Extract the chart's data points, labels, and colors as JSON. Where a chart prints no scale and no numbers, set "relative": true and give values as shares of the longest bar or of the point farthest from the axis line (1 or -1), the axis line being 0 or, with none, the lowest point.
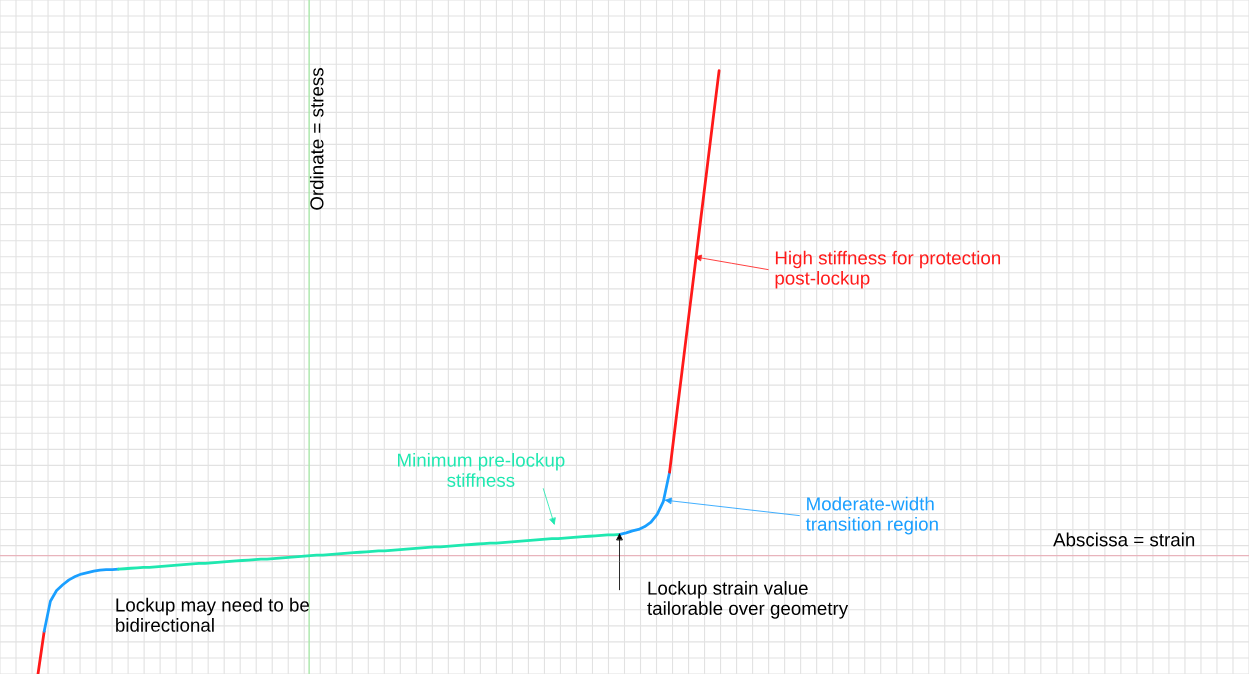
{
  "chart_data": {
    "type": "line",
    "relative": true,
    "grid": true,
    "legend": false,
    "line_style": "solid",
    "ylabel": "Ordinate = stress",
    "ref_lines": [
      {
        "axis": "y",
        "value": 0,
        "label": "Abscissa = strain",
        "color": "#e8b4bc"
      }
    ],
    "categories": [
      null,
      null,
      null,
      null,
      null,
      null,
      null,
      null,
      null,
      null,
      null,
      null,
      null,
      null,
      null,
      null,
      null,
      null,
      null,
      null,
      null,
      null,
      null,
      null,
      null,
      null,
      null,
      null,
      null,
      null,
      null,
      null,
      null,
      null,
      null,
      null,
      null,
      null,
      null,
      null,
      null,
      null,
      null,
      null,
      null,
      null,
      null,
      null,
      null,
      null,
      null,
      null,
      null,
      null,
      null,
      null,
      null,
      null,
      null,
      null,
      null,
      null,
      null,
      null,
      null,
      null,
      null,
      null,
      null,
      null,
      null,
      null,
      null,
      null,
      null,
      null,
      null,
      null,
      null,
      null,
      null,
      null,
      null,
      null,
      null,
      null,
      null,
      null,
      null,
      null,
      null,
      null,
      null,
      null,
      null,
      null,
      null,
      null,
      null,
      null,
      null,
      null,
      null,
      null,
      null,
      null,
      null,
      null,
      null,
      null,
      null
    ],
    "series": [
      {
        "color": "#ff1a1a",
        "values": [
          -0.244,
          -0.156,
          null,
          null,
          null,
          null,
          null,
          null,
          null,
          null,
          null,
          null,
          null,
          null,
          null,
          null,
          null,
          null,
          null,
          null,
          null,
          null,
          null,
          null,
          null,
          null,
          null,
          null,
          null,
          null,
          null,
          null,
          null,
          null,
          null,
          null,
          null,
          null,
          null,
          null,
          null,
          null,
          null,
          null,
          null,
          null,
          null,
          null,
          null,
          null,
          null,
          null,
          null,
          null,
          null,
          null,
          null,
          null,
          null,
          null,
          null,
          null,
          null,
          null,
          null,
          null,
          null,
          null,
          null,
          null,
          null,
          null,
          null,
          null,
          null,
          null,
          null,
          null,
          null,
          null,
          null,
          null,
          null,
          null,
          null,
          null,
          null,
          null,
          null,
          null,
          null,
          null,
          null,
          null,
          null,
          null,
          null,
          null,
          null,
          null,
          null,
          null,
          null,
          null,
          null,
          null,
          null,
          null,
          null,
          null,
          null
        ]
      },
      {
        "color": "#1a9fff",
        "values": [
          null,
          -0.156,
          -0.094,
          -0.072,
          -0.06,
          -0.05,
          -0.043,
          -0.038,
          -0.035,
          -0.032,
          -0.03,
          -0.029,
          -0.029,
          -0.028,
          null,
          null,
          null,
          null,
          null,
          null,
          null,
          null,
          null,
          null,
          null,
          null,
          null,
          null,
          null,
          null,
          null,
          null,
          null,
          null,
          null,
          null,
          null,
          null,
          null,
          null,
          null,
          null,
          null,
          null,
          null,
          null,
          null,
          null,
          null,
          null,
          null,
          null,
          null,
          null,
          null,
          null,
          null,
          null,
          null,
          null,
          null,
          null,
          null,
          null,
          null,
          null,
          null,
          null,
          null,
          null,
          null,
          null,
          null,
          null,
          null,
          null,
          null,
          null,
          null,
          null,
          null,
          null,
          null,
          null,
          null,
          null,
          null,
          null,
          null,
          null,
          null,
          null,
          null,
          null,
          null,
          null,
          null,
          null,
          null,
          null,
          null,
          null,
          null,
          null,
          null,
          null,
          null,
          null,
          null,
          null,
          null
        ]
      },
      {
        "color": "#1fe8b0",
        "values": [
          null,
          null,
          null,
          null,
          null,
          null,
          null,
          null,
          null,
          null,
          null,
          null,
          null,
          -0.028,
          -0.027,
          -0.026,
          -0.025,
          -0.024,
          -0.024,
          -0.023,
          -0.022,
          -0.021,
          -0.02,
          -0.019,
          -0.018,
          -0.017,
          -0.016,
          -0.016,
          -0.015,
          -0.014,
          -0.013,
          -0.012,
          -0.011,
          -0.01,
          -0.009,
          -0.008,
          -0.007,
          -0.007,
          -0.006,
          -0.005,
          -0.004,
          -0.003,
          -0.002,
          -0.001,
          0.0,
          0.001,
          0.001,
          0.002,
          0.003,
          0.004,
          0.005,
          0.006,
          0.007,
          0.008,
          0.009,
          0.01,
          0.01,
          0.011,
          0.012,
          0.013,
          0.014,
          0.015,
          0.016,
          0.017,
          0.018,
          0.018,
          0.019,
          0.02,
          0.021,
          0.022,
          0.023,
          0.024,
          0.025,
          0.026,
          0.026,
          0.027,
          0.028,
          0.029,
          0.03,
          0.031,
          0.032,
          0.033,
          0.034,
          0.035,
          0.035,
          0.036,
          0.037,
          0.038,
          0.039,
          0.04,
          0.041,
          0.042,
          0.043,
          0.043,
          0.044,
          null,
          null,
          null,
          null,
          null,
          null,
          null,
          null,
          null,
          null,
          null,
          null,
          null,
          null,
          null,
          null
        ]
      },
      {
        "color": "#1a9fff",
        "values": [
          null,
          null,
          null,
          null,
          null,
          null,
          null,
          null,
          null,
          null,
          null,
          null,
          null,
          null,
          null,
          null,
          null,
          null,
          null,
          null,
          null,
          null,
          null,
          null,
          null,
          null,
          null,
          null,
          null,
          null,
          null,
          null,
          null,
          null,
          null,
          null,
          null,
          null,
          null,
          null,
          null,
          null,
          null,
          null,
          null,
          null,
          null,
          null,
          null,
          null,
          null,
          null,
          null,
          null,
          null,
          null,
          null,
          null,
          null,
          null,
          null,
          null,
          null,
          null,
          null,
          null,
          null,
          null,
          null,
          null,
          null,
          null,
          null,
          null,
          null,
          null,
          null,
          null,
          null,
          null,
          null,
          null,
          null,
          null,
          null,
          null,
          null,
          null,
          null,
          null,
          null,
          null,
          null,
          null,
          0.044,
          0.047,
          0.051,
          0.054,
          0.06,
          0.069,
          0.085,
          0.112,
          0.172,
          null,
          null,
          null,
          null,
          null,
          null,
          null,
          null
        ]
      },
      {
        "color": "#ff1a1a",
        "values": [
          null,
          null,
          null,
          null,
          null,
          null,
          null,
          null,
          null,
          null,
          null,
          null,
          null,
          null,
          null,
          null,
          null,
          null,
          null,
          null,
          null,
          null,
          null,
          null,
          null,
          null,
          null,
          null,
          null,
          null,
          null,
          null,
          null,
          null,
          null,
          null,
          null,
          null,
          null,
          null,
          null,
          null,
          null,
          null,
          null,
          null,
          null,
          null,
          null,
          null,
          null,
          null,
          null,
          null,
          null,
          null,
          null,
          null,
          null,
          null,
          null,
          null,
          null,
          null,
          null,
          null,
          null,
          null,
          null,
          null,
          null,
          null,
          null,
          null,
          null,
          null,
          null,
          null,
          null,
          null,
          null,
          null,
          null,
          null,
          null,
          null,
          null,
          null,
          null,
          null,
          null,
          null,
          null,
          null,
          null,
          null,
          null,
          null,
          null,
          null,
          null,
          null,
          0.172,
          0.276,
          0.379,
          0.483,
          0.586,
          0.69,
          0.793,
          0.897,
          1.0
        ]
      }
    ],
    "annotations": [
      "High stiffness for protection\npost-lockup",
      "Moderate-width\ntransition region",
      "Minimum pre-lockup\nstiffness",
      "Lockup strain value\ntailorable over geometry",
      "Lockup may need to be\nbidirectional"
    ]
  }
}
